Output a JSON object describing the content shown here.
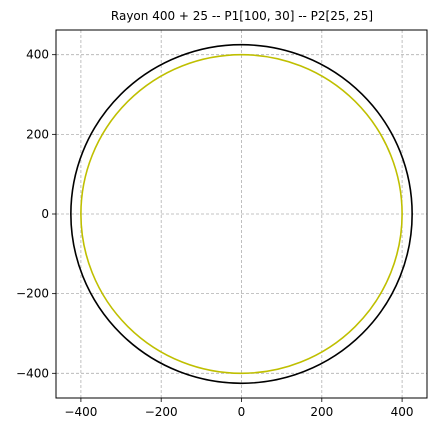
{
  "chart_data": {
    "type": "line",
    "title": "Rayon 400 + 25 -- P1[100, 30] -- P2[25, 25]",
    "xlabel": "",
    "ylabel": "",
    "xlim": [
      -462,
      462
    ],
    "ylim": [
      -462,
      462
    ],
    "xticks": [
      -400,
      -200,
      0,
      200,
      400
    ],
    "yticks": [
      -400,
      -200,
      0,
      200,
      400
    ],
    "xtick_labels": [
      "−400",
      "−200",
      "0",
      "200",
      "400"
    ],
    "ytick_labels": [
      "−400",
      "−200",
      "0",
      "200",
      "400"
    ],
    "grid": true,
    "grid_style": "dashed",
    "series": [
      {
        "kind": "circle",
        "center": [
          0,
          0
        ],
        "radius": 425,
        "color": "#000000"
      },
      {
        "kind": "circle",
        "center": [
          0,
          0
        ],
        "radius": 400,
        "color": "#bfbf00"
      }
    ]
  }
}
